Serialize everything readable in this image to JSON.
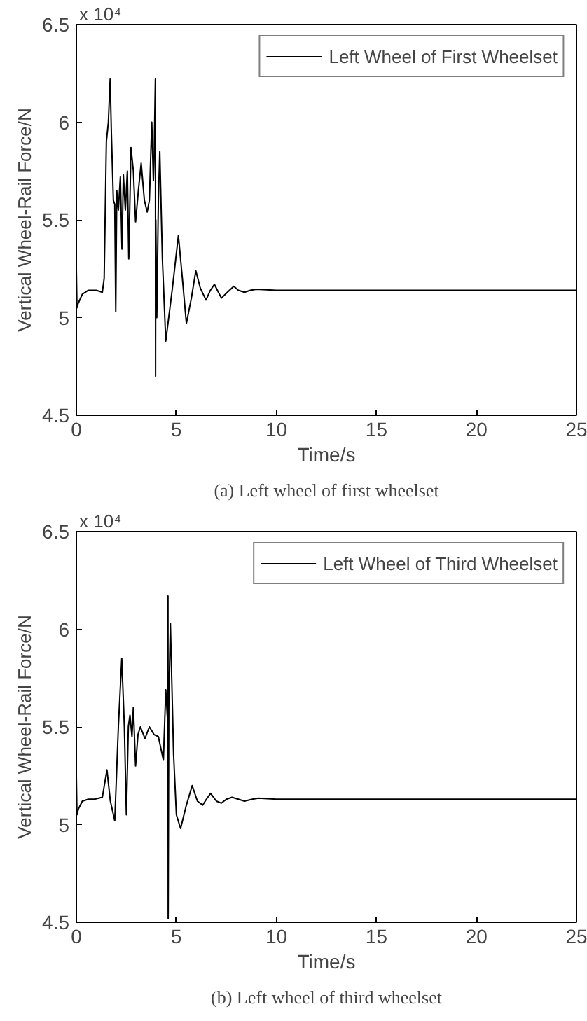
{
  "chart_data": [
    {
      "type": "line",
      "title": "(a) Left wheel of first wheelset",
      "xlabel": "Time/s",
      "ylabel": "Vertical Wheel-Rail Force/N",
      "annotations": [
        "x 10⁴"
      ],
      "xlim": [
        0,
        25
      ],
      "ylim": [
        4.5,
        6.5
      ],
      "xticks": [
        0,
        5,
        10,
        15,
        20,
        25
      ],
      "yticks": [
        4.5,
        5,
        5.5,
        6,
        6.5
      ],
      "grid": false,
      "legend": "top right",
      "line_style": "solid",
      "series": [
        {
          "name": "Left Wheel of First Wheelset",
          "color": "#000000",
          "x": [
            0,
            0.03,
            0.08,
            0.3,
            0.6,
            1.0,
            1.3,
            1.39,
            1.5,
            1.6,
            1.69,
            1.75,
            1.85,
            1.92,
            1.97,
            2.02,
            2.1,
            2.2,
            2.28,
            2.35,
            2.45,
            2.55,
            2.62,
            2.73,
            2.85,
            2.96,
            3.1,
            3.24,
            3.4,
            3.54,
            3.65,
            3.77,
            3.85,
            3.89,
            3.95,
            3.96,
            3.97,
            4.02,
            4.1,
            4.17,
            4.3,
            4.47,
            4.8,
            5.1,
            5.3,
            5.5,
            5.75,
            5.97,
            6.2,
            6.48,
            6.7,
            6.9,
            7.1,
            7.25,
            7.55,
            7.87,
            8.1,
            8.4,
            8.7,
            9.0,
            10,
            25
          ],
          "values": [
            5.25,
            5.05,
            5.07,
            5.12,
            5.14,
            5.14,
            5.13,
            5.2,
            5.9,
            6.0,
            6.22,
            5.95,
            5.6,
            5.58,
            5.03,
            5.65,
            5.55,
            5.72,
            5.35,
            5.73,
            5.55,
            5.75,
            5.3,
            5.87,
            5.75,
            5.49,
            5.65,
            5.79,
            5.6,
            5.54,
            5.6,
            6.0,
            5.7,
            5.84,
            6.22,
            4.7,
            5.5,
            5.0,
            5.6,
            5.85,
            5.3,
            4.88,
            5.15,
            5.42,
            5.2,
            4.97,
            5.1,
            5.24,
            5.15,
            5.09,
            5.14,
            5.17,
            5.13,
            5.1,
            5.13,
            5.16,
            5.14,
            5.13,
            5.14,
            5.145,
            5.14,
            5.14
          ]
        }
      ]
    },
    {
      "type": "line",
      "title": "(b) Left wheel of third wheelset",
      "xlabel": "Time/s",
      "ylabel": "Vertical Wheel-Rail Force/N",
      "annotations": [
        "x 10⁴"
      ],
      "xlim": [
        0,
        25
      ],
      "ylim": [
        4.5,
        6.5
      ],
      "xticks": [
        0,
        5,
        10,
        15,
        20,
        25
      ],
      "yticks": [
        4.5,
        5,
        5.5,
        6,
        6.5
      ],
      "grid": false,
      "legend": "top right",
      "line_style": "solid",
      "series": [
        {
          "name": "Left Wheel of Third Wheelset",
          "color": "#000000",
          "x": [
            0,
            0.03,
            0.1,
            0.3,
            0.6,
            0.9,
            1.3,
            1.53,
            1.7,
            1.92,
            2.1,
            2.27,
            2.4,
            2.5,
            2.6,
            2.68,
            2.78,
            2.85,
            2.96,
            3.08,
            3.2,
            3.43,
            3.65,
            3.89,
            4.1,
            4.35,
            4.47,
            4.55,
            4.58,
            4.59,
            4.62,
            4.7,
            4.86,
            5.0,
            5.21,
            5.5,
            5.79,
            6.05,
            6.32,
            6.5,
            6.71,
            7.0,
            7.25,
            7.5,
            7.78,
            8.1,
            8.4,
            8.8,
            9.1,
            10,
            25
          ],
          "values": [
            5.25,
            5.05,
            5.08,
            5.12,
            5.13,
            5.13,
            5.14,
            5.28,
            5.12,
            5.02,
            5.5,
            5.85,
            5.5,
            5.05,
            5.5,
            5.56,
            5.45,
            5.6,
            5.3,
            5.46,
            5.5,
            5.44,
            5.5,
            5.46,
            5.45,
            5.33,
            5.69,
            5.55,
            6.17,
            4.52,
            5.6,
            6.03,
            5.36,
            5.05,
            4.98,
            5.1,
            5.2,
            5.12,
            5.1,
            5.13,
            5.16,
            5.12,
            5.11,
            5.13,
            5.14,
            5.13,
            5.12,
            5.13,
            5.135,
            5.13,
            5.13
          ]
        }
      ]
    }
  ]
}
